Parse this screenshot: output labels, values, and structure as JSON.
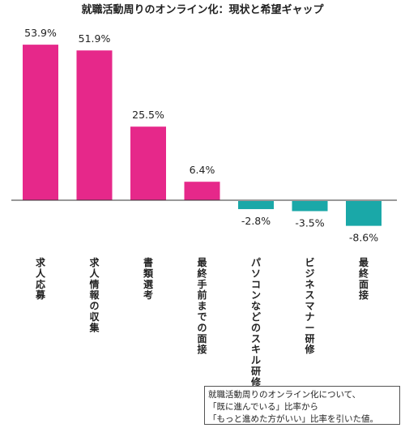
{
  "chart_data": {
    "type": "bar",
    "title": "就職活動周りのオンライン化：現状と希望ギャップ",
    "categories": [
      "求人応募",
      "求人情報の収集",
      "書類選考",
      "最終手前までの面接",
      "パソコンなどのスキル研修",
      "ビジネスマナー研修",
      "最終面接"
    ],
    "values": [
      53.9,
      51.9,
      25.5,
      6.4,
      -2.8,
      -3.5,
      -8.6
    ],
    "value_labels": [
      "53.9%",
      "51.9%",
      "25.5%",
      "6.4%",
      "-2.8%",
      "-3.5%",
      "-8.6%"
    ],
    "colors": {
      "positive": "#e6288a",
      "negative": "#1aa8a8",
      "axis": "#333333"
    },
    "unit": "%",
    "grid": false,
    "legend": "none"
  },
  "note": {
    "lines": [
      "就職活動周りのオンライン化について、",
      "「既に進んでいる」比率から",
      "「もっと進めた方がいい」比率を引いた値。"
    ]
  }
}
